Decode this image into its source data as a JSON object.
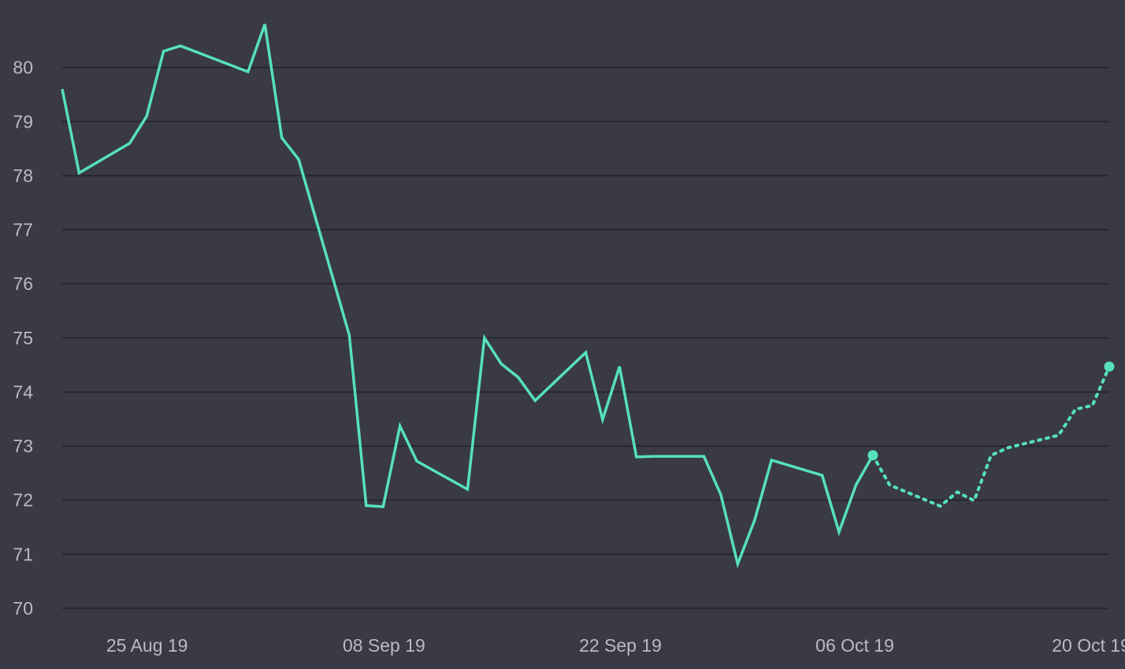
{
  "chart_data": {
    "type": "line",
    "title": "",
    "xlabel": "",
    "ylabel": "",
    "xlim": [
      "2019-08-23",
      "2019-10-24"
    ],
    "ylim": [
      70,
      81
    ],
    "y_ticks": [
      70,
      71,
      72,
      73,
      74,
      75,
      76,
      77,
      78,
      79,
      80
    ],
    "x_ticks": [
      {
        "date": "2019-08-25",
        "label": "25 Aug 19"
      },
      {
        "date": "2019-09-08",
        "label": "08 Sep 19"
      },
      {
        "date": "2019-09-22",
        "label": "22 Sep 19"
      },
      {
        "date": "2019-10-06",
        "label": "06 Oct 19"
      },
      {
        "date": "2019-10-20",
        "label": "20 Oct 19"
      }
    ],
    "grid": true,
    "legend": "none",
    "colors": {
      "background": "#393a45",
      "line": "#57e0bd",
      "grid": "#262731",
      "text": "#b9bac4"
    },
    "series": [
      {
        "style": "solid",
        "x": [
          "2019-08-23",
          "2019-08-24",
          "2019-08-27",
          "2019-08-28",
          "2019-08-29",
          "2019-08-30",
          "2019-09-03",
          "2019-09-04",
          "2019-09-05",
          "2019-09-06",
          "2019-09-09",
          "2019-09-10",
          "2019-09-11",
          "2019-09-12",
          "2019-09-13",
          "2019-09-16",
          "2019-09-17",
          "2019-09-18",
          "2019-09-19",
          "2019-09-20",
          "2019-09-23",
          "2019-09-24",
          "2019-09-25",
          "2019-09-26",
          "2019-09-27",
          "2019-09-30",
          "2019-10-01",
          "2019-10-02",
          "2019-10-03",
          "2019-10-04",
          "2019-10-07",
          "2019-10-08",
          "2019-10-09",
          "2019-10-10"
        ],
        "values": [
          79.6,
          78.05,
          78.6,
          79.1,
          80.3,
          80.4,
          79.92,
          80.8,
          78.7,
          78.3,
          75.05,
          71.9,
          71.88,
          73.37,
          72.72,
          72.2,
          75.0,
          74.52,
          74.27,
          73.84,
          74.73,
          73.49,
          74.47,
          72.8,
          72.81,
          72.81,
          72.1,
          70.82,
          71.63,
          72.74,
          72.46,
          71.41,
          72.28,
          72.83
        ]
      },
      {
        "style": "dotted",
        "x": [
          "2019-10-10",
          "2019-10-11",
          "2019-10-14",
          "2019-10-15",
          "2019-10-16",
          "2019-10-17",
          "2019-10-18",
          "2019-10-21",
          "2019-10-22",
          "2019-10-23",
          "2019-10-24"
        ],
        "values": [
          72.83,
          72.28,
          71.89,
          72.15,
          71.99,
          72.83,
          72.97,
          73.2,
          73.68,
          73.75,
          74.47
        ]
      }
    ]
  }
}
